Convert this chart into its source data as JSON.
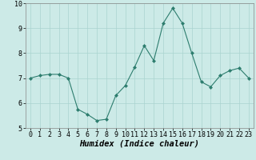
{
  "x": [
    0,
    1,
    2,
    3,
    4,
    5,
    6,
    7,
    8,
    9,
    10,
    11,
    12,
    13,
    14,
    15,
    16,
    17,
    18,
    19,
    20,
    21,
    22,
    23
  ],
  "y": [
    7.0,
    7.1,
    7.15,
    7.15,
    7.0,
    5.75,
    5.55,
    5.3,
    5.35,
    6.3,
    6.7,
    7.45,
    8.3,
    7.7,
    9.2,
    9.8,
    9.2,
    8.0,
    6.85,
    6.65,
    7.1,
    7.3,
    7.4,
    7.0
  ],
  "line_color": "#2d7d6e",
  "marker": "D",
  "marker_size": 2.0,
  "bg_color": "#cceae7",
  "grid_color": "#aad4d0",
  "xlabel": "Humidex (Indice chaleur)",
  "xlabel_fontsize": 7.5,
  "tick_fontsize": 6.0,
  "ylim": [
    5,
    10
  ],
  "xlim": [
    -0.5,
    23.5
  ],
  "yticks": [
    5,
    6,
    7,
    8,
    9,
    10
  ],
  "xticks": [
    0,
    1,
    2,
    3,
    4,
    5,
    6,
    7,
    8,
    9,
    10,
    11,
    12,
    13,
    14,
    15,
    16,
    17,
    18,
    19,
    20,
    21,
    22,
    23
  ]
}
